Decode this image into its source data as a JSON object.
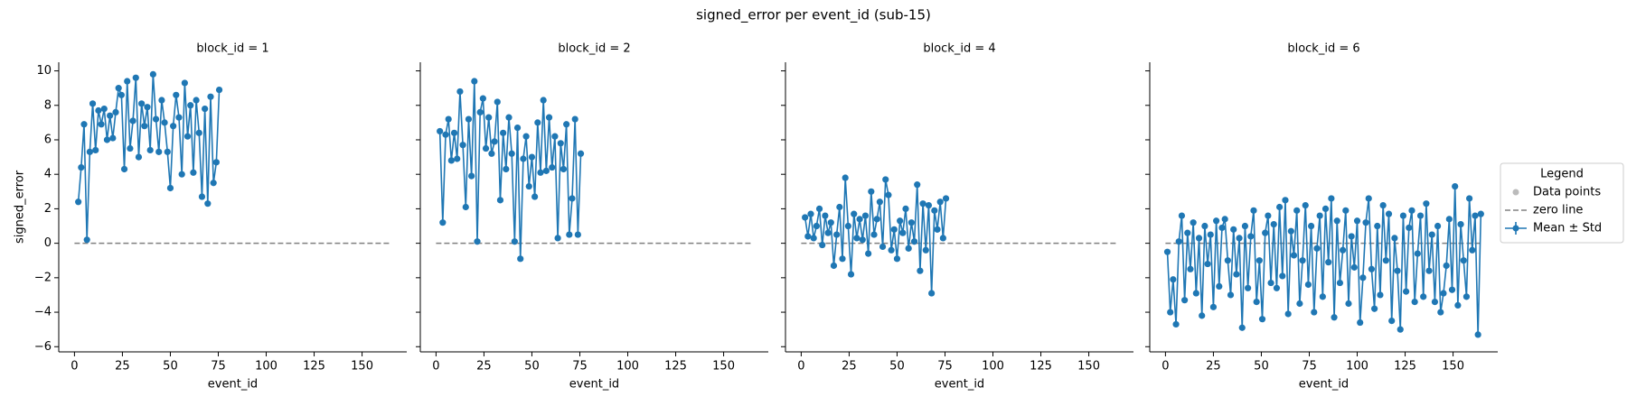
{
  "title": "signed_error per event_id (sub-15)",
  "legend": {
    "title": "Legend",
    "location": "center right",
    "entries": [
      {
        "name": "Data points",
        "color": "#bbbbbb",
        "style": "dot"
      },
      {
        "name": "zero line",
        "color": "#808080",
        "style": "dashed"
      },
      {
        "name": "Mean ± Std",
        "color": "#1f77b4",
        "style": "errorbar"
      }
    ]
  },
  "chart_data": [
    {
      "type": "line",
      "title": "block_id = 1",
      "xlabel": "event_id",
      "ylabel": "signed_error",
      "ytick_labels": true,
      "color": "#1f77b4",
      "x": [
        2,
        3.5,
        5,
        6.5,
        8,
        9.5,
        11,
        12.5,
        14,
        15.5,
        17,
        18.5,
        20,
        21.5,
        23,
        24.5,
        26,
        27.5,
        29,
        30.5,
        32,
        33.5,
        35,
        36.5,
        38,
        39.5,
        41,
        42.5,
        44,
        45.5,
        47,
        48.5,
        50,
        51.5,
        53,
        54.5,
        56,
        57.5,
        59,
        60.5,
        62,
        63.5,
        65,
        66.5,
        68,
        69.5,
        71,
        72.5,
        74,
        75.5
      ],
      "values": [
        2.4,
        4.4,
        6.9,
        0.2,
        5.3,
        8.1,
        5.4,
        7.7,
        6.9,
        7.8,
        6.0,
        7.4,
        6.1,
        7.6,
        9.0,
        8.6,
        4.3,
        9.4,
        5.5,
        7.1,
        9.6,
        5.0,
        8.1,
        6.8,
        7.9,
        5.4,
        9.8,
        7.2,
        5.3,
        8.3,
        7.0,
        5.3,
        3.2,
        6.8,
        8.6,
        7.3,
        4.0,
        9.3,
        6.2,
        8.0,
        4.1,
        8.3,
        6.4,
        2.7,
        7.8,
        2.3,
        8.5,
        3.5,
        4.7,
        8.9
      ],
      "zero_line": {
        "y": 0,
        "x": [
          0,
          165
        ],
        "color": "#808080"
      },
      "xlim": [
        -8.2,
        173.3
      ],
      "ylim": [
        -6.3,
        10.5
      ],
      "xticks": [
        0,
        25,
        50,
        75,
        100,
        125,
        150
      ],
      "yticks": [
        {
          "value": -6,
          "label": "−6"
        },
        {
          "value": -4,
          "label": "−4"
        },
        {
          "value": -2,
          "label": "−2"
        },
        0,
        2,
        4,
        6,
        8,
        10
      ]
    },
    {
      "type": "line",
      "title": "block_id = 2",
      "xlabel": "event_id",
      "ytick_labels": false,
      "color": "#1f77b4",
      "x": [
        2,
        3.5,
        5,
        6.5,
        8,
        9.5,
        11,
        12.5,
        14,
        15.5,
        17,
        18.5,
        20,
        21.5,
        23,
        24.5,
        26,
        27.5,
        29,
        30.5,
        32,
        33.5,
        35,
        36.5,
        38,
        39.5,
        41,
        42.5,
        44,
        45.5,
        47,
        48.5,
        50,
        51.5,
        53,
        54.5,
        56,
        57.5,
        59,
        60.5,
        62,
        63.5,
        65,
        66.5,
        68,
        69.5,
        71,
        72.5,
        74,
        75.5
      ],
      "values": [
        6.5,
        1.2,
        6.3,
        7.2,
        4.8,
        6.4,
        4.9,
        8.8,
        5.7,
        2.1,
        7.2,
        3.9,
        9.4,
        0.1,
        7.6,
        8.4,
        5.5,
        7.3,
        5.2,
        5.9,
        8.2,
        2.5,
        6.4,
        4.3,
        7.3,
        5.2,
        0.1,
        6.7,
        -0.9,
        4.9,
        6.2,
        3.3,
        5.0,
        2.7,
        7.0,
        4.1,
        8.3,
        4.2,
        7.3,
        4.4,
        6.2,
        0.3,
        5.8,
        4.3,
        6.9,
        0.5,
        2.6,
        7.2,
        0.5,
        5.2
      ],
      "zero_line": {
        "y": 0,
        "x": [
          0,
          165
        ],
        "color": "#808080"
      },
      "xlim": [
        -8.2,
        173.3
      ],
      "ylim": [
        -6.3,
        10.5
      ],
      "xticks": [
        0,
        25,
        50,
        75,
        100,
        125,
        150
      ],
      "yticks": [
        -6,
        -4,
        -2,
        0,
        2,
        4,
        6,
        8,
        10
      ]
    },
    {
      "type": "line",
      "title": "block_id = 4",
      "xlabel": "event_id",
      "ytick_labels": false,
      "color": "#1f77b4",
      "x": [
        2,
        3.5,
        5,
        6.5,
        8,
        9.5,
        11,
        12.5,
        14,
        15.5,
        17,
        18.5,
        20,
        21.5,
        23,
        24.5,
        26,
        27.5,
        29,
        30.5,
        32,
        33.5,
        35,
        36.5,
        38,
        39.5,
        41,
        42.5,
        44,
        45.5,
        47,
        48.5,
        50,
        51.5,
        53,
        54.5,
        56,
        57.5,
        59,
        60.5,
        62,
        63.5,
        65,
        66.5,
        68,
        69.5,
        71,
        72.5,
        74,
        75.5
      ],
      "values": [
        1.5,
        0.4,
        1.7,
        0.3,
        1.0,
        2.0,
        -0.1,
        1.6,
        0.6,
        1.2,
        -1.3,
        0.5,
        2.1,
        -0.9,
        3.8,
        1.0,
        -1.8,
        1.7,
        0.3,
        1.4,
        0.2,
        1.6,
        -0.6,
        3.0,
        0.5,
        1.4,
        2.4,
        -0.2,
        3.7,
        2.8,
        -0.4,
        0.8,
        -0.9,
        1.3,
        0.6,
        2.0,
        -0.3,
        1.2,
        0.1,
        3.4,
        -1.6,
        2.3,
        -0.4,
        2.2,
        -2.9,
        1.9,
        0.8,
        2.4,
        0.3,
        2.6
      ],
      "zero_line": {
        "y": 0,
        "x": [
          0,
          165
        ],
        "color": "#808080"
      },
      "xlim": [
        -8.2,
        173.3
      ],
      "ylim": [
        -6.3,
        10.5
      ],
      "xticks": [
        0,
        25,
        50,
        75,
        100,
        125,
        150
      ],
      "yticks": [
        -6,
        -4,
        -2,
        0,
        2,
        4,
        6,
        8,
        10
      ]
    },
    {
      "type": "line",
      "title": "block_id = 6",
      "xlabel": "event_id",
      "ytick_labels": false,
      "color": "#1f77b4",
      "x": [
        1,
        2.5,
        4,
        5.5,
        7,
        8.5,
        10,
        11.5,
        13,
        14.5,
        16,
        17.5,
        19,
        20.5,
        22,
        23.5,
        25,
        26.5,
        28,
        29.5,
        31,
        32.5,
        34,
        35.5,
        37,
        38.5,
        40,
        41.5,
        43,
        44.5,
        46,
        47.5,
        49,
        50.5,
        52,
        53.5,
        55,
        56.5,
        58,
        59.5,
        61,
        62.5,
        64,
        65.5,
        67,
        68.5,
        70,
        71.5,
        73,
        74.5,
        76,
        77.5,
        79,
        80.5,
        82,
        83.5,
        85,
        86.5,
        88,
        89.5,
        91,
        92.5,
        94,
        95.5,
        97,
        98.5,
        100,
        101.5,
        103,
        104.5,
        106,
        107.5,
        109,
        110.5,
        112,
        113.5,
        115,
        116.5,
        118,
        119.5,
        121,
        122.5,
        124,
        125.5,
        127,
        128.5,
        130,
        131.5,
        133,
        134.5,
        136,
        137.5,
        139,
        140.5,
        142,
        143.5,
        145,
        146.5,
        148,
        149.5,
        151,
        152.5,
        154,
        155.5,
        157,
        158.5,
        160,
        161.5,
        163,
        164.5
      ],
      "values": [
        -0.5,
        -4.0,
        -2.1,
        -4.7,
        0.1,
        1.6,
        -3.3,
        0.6,
        -1.5,
        1.2,
        -2.9,
        0.3,
        -4.2,
        1.0,
        -1.2,
        0.5,
        -3.7,
        1.3,
        -2.5,
        0.9,
        1.4,
        -1.0,
        -3.0,
        0.8,
        -1.8,
        0.3,
        -4.9,
        1.0,
        -2.6,
        0.4,
        1.9,
        -3.4,
        -1.0,
        -4.4,
        0.6,
        1.6,
        -2.3,
        1.1,
        -2.6,
        2.1,
        -1.9,
        2.5,
        -4.1,
        0.7,
        -0.7,
        1.9,
        -3.5,
        -1.0,
        2.2,
        -2.4,
        1.0,
        -4.0,
        -0.3,
        1.6,
        -3.1,
        2.0,
        -1.1,
        2.6,
        -4.3,
        1.3,
        -2.3,
        -0.4,
        1.9,
        -3.5,
        0.4,
        -1.4,
        1.3,
        -4.6,
        -2.0,
        1.2,
        2.6,
        -1.5,
        -3.8,
        1.0,
        -3.0,
        2.2,
        -1.0,
        1.7,
        -4.5,
        0.3,
        -1.6,
        -5.0,
        1.6,
        -2.8,
        0.9,
        1.9,
        -3.4,
        -0.6,
        1.6,
        -3.1,
        2.3,
        -1.6,
        0.5,
        -3.4,
        1.0,
        -4.0,
        -2.9,
        -1.3,
        1.4,
        -2.7,
        3.3,
        -3.6,
        1.1,
        -1.0,
        -3.1,
        2.6,
        -0.4,
        1.6,
        -5.3,
        1.7
      ],
      "zero_line": {
        "y": 0,
        "x": [
          0,
          165
        ],
        "color": "#808080"
      },
      "xlim": [
        -8.2,
        173.3
      ],
      "ylim": [
        -6.3,
        10.5
      ],
      "xticks": [
        0,
        25,
        50,
        75,
        100,
        125,
        150
      ],
      "yticks": [
        -6,
        -4,
        -2,
        0,
        2,
        4,
        6,
        8,
        10
      ]
    }
  ]
}
